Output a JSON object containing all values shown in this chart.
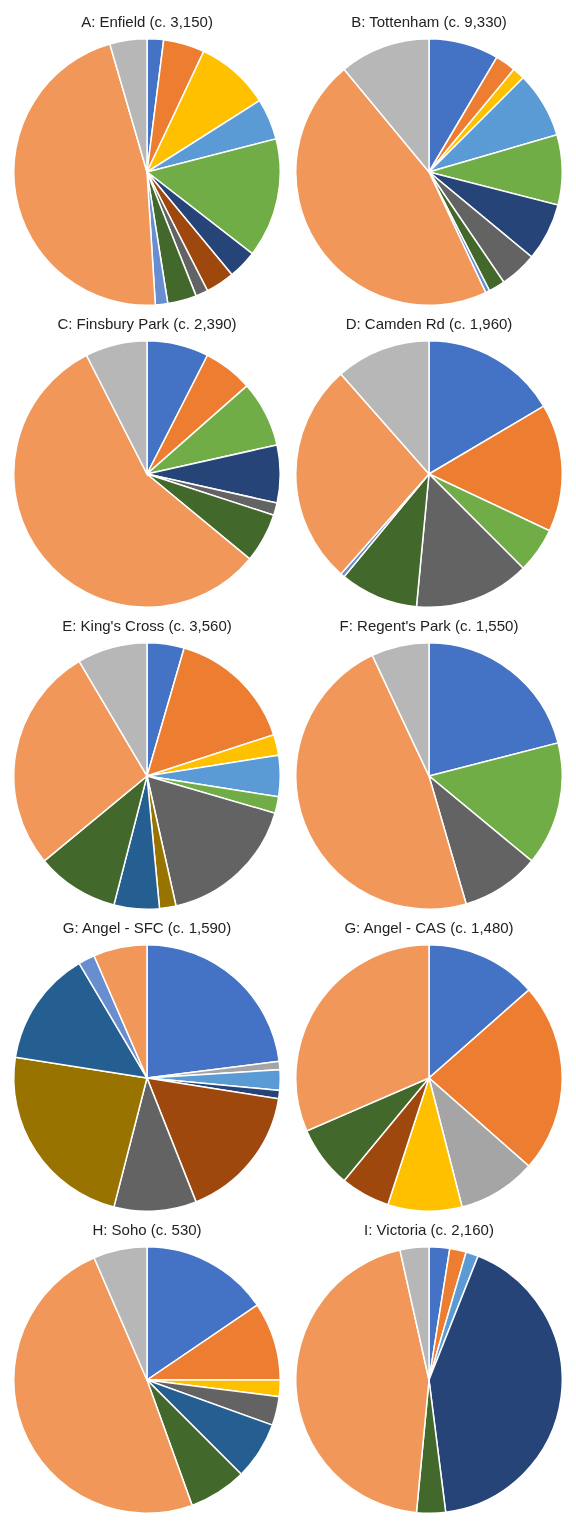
{
  "chart_data": [
    {
      "type": "pie",
      "title": "A: Enfield (c. 3,150)",
      "categories": [
        null,
        null,
        null,
        null,
        null,
        null,
        null,
        null,
        null,
        null,
        null,
        null
      ],
      "values": [
        2,
        5,
        9,
        5,
        14.5,
        3.5,
        3.5,
        1.5,
        3.5,
        1.5,
        46.5,
        4.5
      ],
      "colors": [
        "#4472c4",
        "#ed7d31",
        "#ffc000",
        "#5b9bd5",
        "#70ad47",
        "#264478",
        "#9e480e",
        "#636363",
        "#43682b",
        "#698ed0",
        "#f1975a",
        "#b7b7b7"
      ]
    },
    {
      "type": "pie",
      "title": "B: Tottenham (c. 9,330)",
      "categories": [
        null,
        null,
        null,
        null,
        null,
        null,
        null,
        null,
        null,
        null,
        null
      ],
      "values": [
        8.5,
        2.5,
        1.5,
        8,
        8.5,
        7,
        4.5,
        2,
        0.5,
        46,
        11
      ],
      "colors": [
        "#4472c4",
        "#ed7d31",
        "#ffc000",
        "#5b9bd5",
        "#70ad47",
        "#264478",
        "#636363",
        "#43682b",
        "#698ed0",
        "#f1975a",
        "#b7b7b7"
      ]
    },
    {
      "type": "pie",
      "title": "C: Finsbury Park (c. 2,390)",
      "categories": [
        null,
        null,
        null,
        null,
        null,
        null,
        null,
        null
      ],
      "values": [
        7.5,
        6,
        8,
        7,
        1.5,
        6,
        56.5,
        7.5
      ],
      "colors": [
        "#4472c4",
        "#ed7d31",
        "#70ad47",
        "#264478",
        "#636363",
        "#43682b",
        "#f1975a",
        "#b7b7b7"
      ]
    },
    {
      "type": "pie",
      "title": "D: Camden Rd (c. 1,960)",
      "categories": [
        null,
        null,
        null,
        null,
        null,
        null,
        null,
        null
      ],
      "values": [
        16.5,
        15.5,
        5.5,
        14,
        9.5,
        0.5,
        27,
        11.5
      ],
      "colors": [
        "#4472c4",
        "#ed7d31",
        "#70ad47",
        "#636363",
        "#43682b",
        "#698ed0",
        "#f1975a",
        "#b7b7b7"
      ]
    },
    {
      "type": "pie",
      "title": "E: King's Cross (c. 3,560)",
      "categories": [
        null,
        null,
        null,
        null,
        null,
        null,
        null,
        null,
        null,
        null,
        null
      ],
      "values": [
        4.5,
        15.5,
        2.5,
        5,
        2,
        17,
        2,
        5.5,
        10,
        27.5,
        8.5
      ],
      "colors": [
        "#4472c4",
        "#ed7d31",
        "#ffc000",
        "#5b9bd5",
        "#70ad47",
        "#636363",
        "#997300",
        "#255e91",
        "#43682b",
        "#f1975a",
        "#b7b7b7"
      ]
    },
    {
      "type": "pie",
      "title": "F: Regent's Park (c. 1,550)",
      "categories": [
        null,
        null,
        null,
        null,
        null
      ],
      "values": [
        21,
        15,
        9.5,
        47.5,
        7
      ],
      "colors": [
        "#4472c4",
        "#70ad47",
        "#636363",
        "#f1975a",
        "#b7b7b7"
      ]
    },
    {
      "type": "pie",
      "title": "G: Angel - SFC (c. 1,590)",
      "categories": [
        null,
        null,
        null,
        null,
        null,
        null,
        null,
        null,
        null,
        null
      ],
      "values": [
        23,
        1,
        2.5,
        1,
        16.5,
        10,
        23.5,
        14,
        2,
        6.5
      ],
      "colors": [
        "#4472c4",
        "#a5a5a5",
        "#5b9bd5",
        "#264478",
        "#9e480e",
        "#636363",
        "#997300",
        "#255e91",
        "#698ed0",
        "#f1975a"
      ]
    },
    {
      "type": "pie",
      "title": "G: Angel - CAS (c. 1,480)",
      "categories": [
        null,
        null,
        null,
        null,
        null,
        null,
        null
      ],
      "values": [
        13.5,
        23,
        9.5,
        9,
        6,
        7.5,
        31.5
      ],
      "colors": [
        "#4472c4",
        "#ed7d31",
        "#a5a5a5",
        "#ffc000",
        "#9e480e",
        "#43682b",
        "#f1975a"
      ]
    },
    {
      "type": "pie",
      "title": "H: Soho (c. 530)",
      "categories": [
        null,
        null,
        null,
        null,
        null,
        null,
        null,
        null
      ],
      "values": [
        15.5,
        9.5,
        2,
        3.5,
        7,
        7,
        49,
        6.5
      ],
      "colors": [
        "#4472c4",
        "#ed7d31",
        "#ffc000",
        "#636363",
        "#255e91",
        "#43682b",
        "#f1975a",
        "#b7b7b7"
      ]
    },
    {
      "type": "pie",
      "title": "I: Victoria (c. 2,160)",
      "categories": [
        null,
        null,
        null,
        null,
        null,
        null,
        null
      ],
      "values": [
        2.5,
        2,
        1.5,
        42,
        3.5,
        45,
        3.5
      ],
      "colors": [
        "#4472c4",
        "#ed7d31",
        "#5b9bd5",
        "#264478",
        "#43682b",
        "#f1975a",
        "#b7b7b7"
      ]
    }
  ]
}
